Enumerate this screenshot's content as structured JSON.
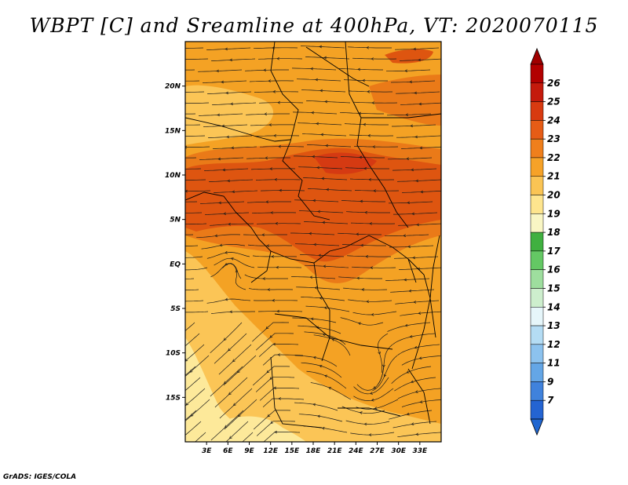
{
  "title": "WBPT [C] and Sreamline at 400hPa, VT: 2020070115",
  "credit": "GrADS: IGES/COLA",
  "map": {
    "lon_range": [
      0,
      36
    ],
    "lat_range": [
      -20,
      25
    ],
    "lon_ticks": [
      "3E",
      "6E",
      "9E",
      "12E",
      "15E",
      "18E",
      "21E",
      "24E",
      "27E",
      "30E",
      "33E"
    ],
    "lon_values": [
      3,
      6,
      9,
      12,
      15,
      18,
      21,
      24,
      27,
      30,
      33
    ],
    "lat_ticks": [
      "20N",
      "15N",
      "10N",
      "5N",
      "EQ",
      "5S",
      "10S",
      "15S"
    ],
    "lat_values": [
      20,
      15,
      10,
      5,
      0,
      -5,
      -10,
      -15
    ],
    "fill_colors": {
      "c19": "#fde99a",
      "c20": "#fbc556",
      "c21": "#f4a224",
      "c22": "#ea7a18",
      "c23": "#de5510",
      "c24": "#d53a12"
    }
  },
  "colorbar": {
    "labels": [
      "26",
      "25",
      "24",
      "23",
      "22",
      "21",
      "20",
      "19",
      "18",
      "17",
      "16",
      "15",
      "14",
      "13",
      "12",
      "11",
      "9",
      "7"
    ],
    "colors": [
      "#b20000",
      "#c41a0c",
      "#d83a10",
      "#e65c16",
      "#ef7f1c",
      "#f6a228",
      "#fac454",
      "#fee58e",
      "#f9f6c4",
      "#40b040",
      "#64c864",
      "#9ede9e",
      "#cdeecd",
      "#e6f6fa",
      "#b4dcf4",
      "#8cc2ee",
      "#64a6e6",
      "#4082dc",
      "#2464d2"
    ],
    "top_arrow_color": "#a00000",
    "bottom_arrow_color": "#2066d0"
  }
}
